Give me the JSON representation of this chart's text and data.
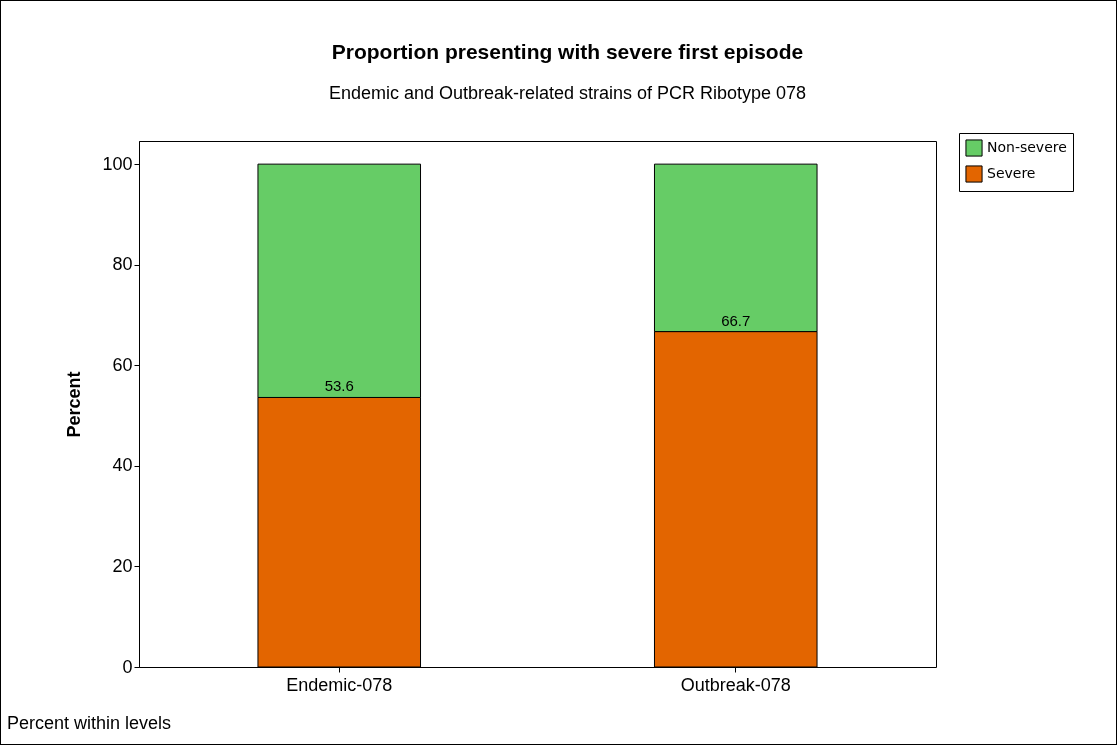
{
  "chart_data": {
    "type": "bar",
    "title": "Proportion presenting with severe first episode",
    "subtitle": "Endemic and Outbreak-related strains of PCR Ribotype 078",
    "ylabel": "Percent",
    "categories": [
      "Endemic-078",
      "Outbreak-078"
    ],
    "stacked": true,
    "series": [
      {
        "name": "Severe",
        "color": "#e36500",
        "values": [
          53.6,
          66.7
        ],
        "value_labels": [
          "53.6",
          "66.7"
        ]
      },
      {
        "name": "Non-severe",
        "color": "#66cc66",
        "values": [
          46.4,
          33.3
        ]
      }
    ],
    "ylim": [
      0,
      104.6
    ],
    "yticks": [
      0,
      20,
      40,
      60,
      80,
      100
    ],
    "grid": false,
    "legend": "top right",
    "annotations": [
      "Percent within levels"
    ]
  }
}
